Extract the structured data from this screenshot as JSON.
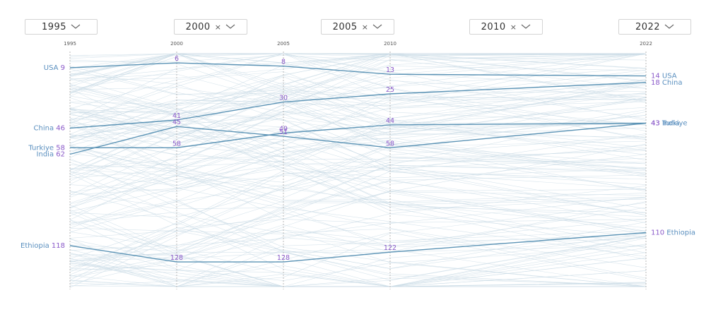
{
  "selectors": [
    {
      "label": "1995",
      "removable": false
    },
    {
      "label": "2000",
      "removable": true
    },
    {
      "label": "2005",
      "removable": true
    },
    {
      "label": "2010",
      "removable": true
    },
    {
      "label": "2022",
      "removable": false
    }
  ],
  "remove_glyph": "×",
  "colors": {
    "highlight": "#5b93b5",
    "background_lines": "#c9dbe6",
    "axis": "#b8b8b8",
    "value_label": "#8a59c9",
    "country_label": "#5a8fbf"
  },
  "chart_data": {
    "type": "line",
    "x": [
      "1995",
      "2000",
      "2005",
      "2010",
      "2022"
    ],
    "y_axis_inverted": true,
    "ylim": [
      1,
      140
    ],
    "series": [
      {
        "name": "USA",
        "values": [
          9,
          6,
          8,
          13,
          14
        ]
      },
      {
        "name": "China",
        "values": [
          46,
          41,
          30,
          25,
          18
        ]
      },
      {
        "name": "Turkiye",
        "values": [
          58,
          58,
          49,
          44,
          43
        ]
      },
      {
        "name": "India",
        "values": [
          62,
          45,
          51,
          58,
          43
        ]
      },
      {
        "name": "Ethiopia",
        "values": [
          118,
          128,
          128,
          122,
          110
        ]
      }
    ]
  }
}
